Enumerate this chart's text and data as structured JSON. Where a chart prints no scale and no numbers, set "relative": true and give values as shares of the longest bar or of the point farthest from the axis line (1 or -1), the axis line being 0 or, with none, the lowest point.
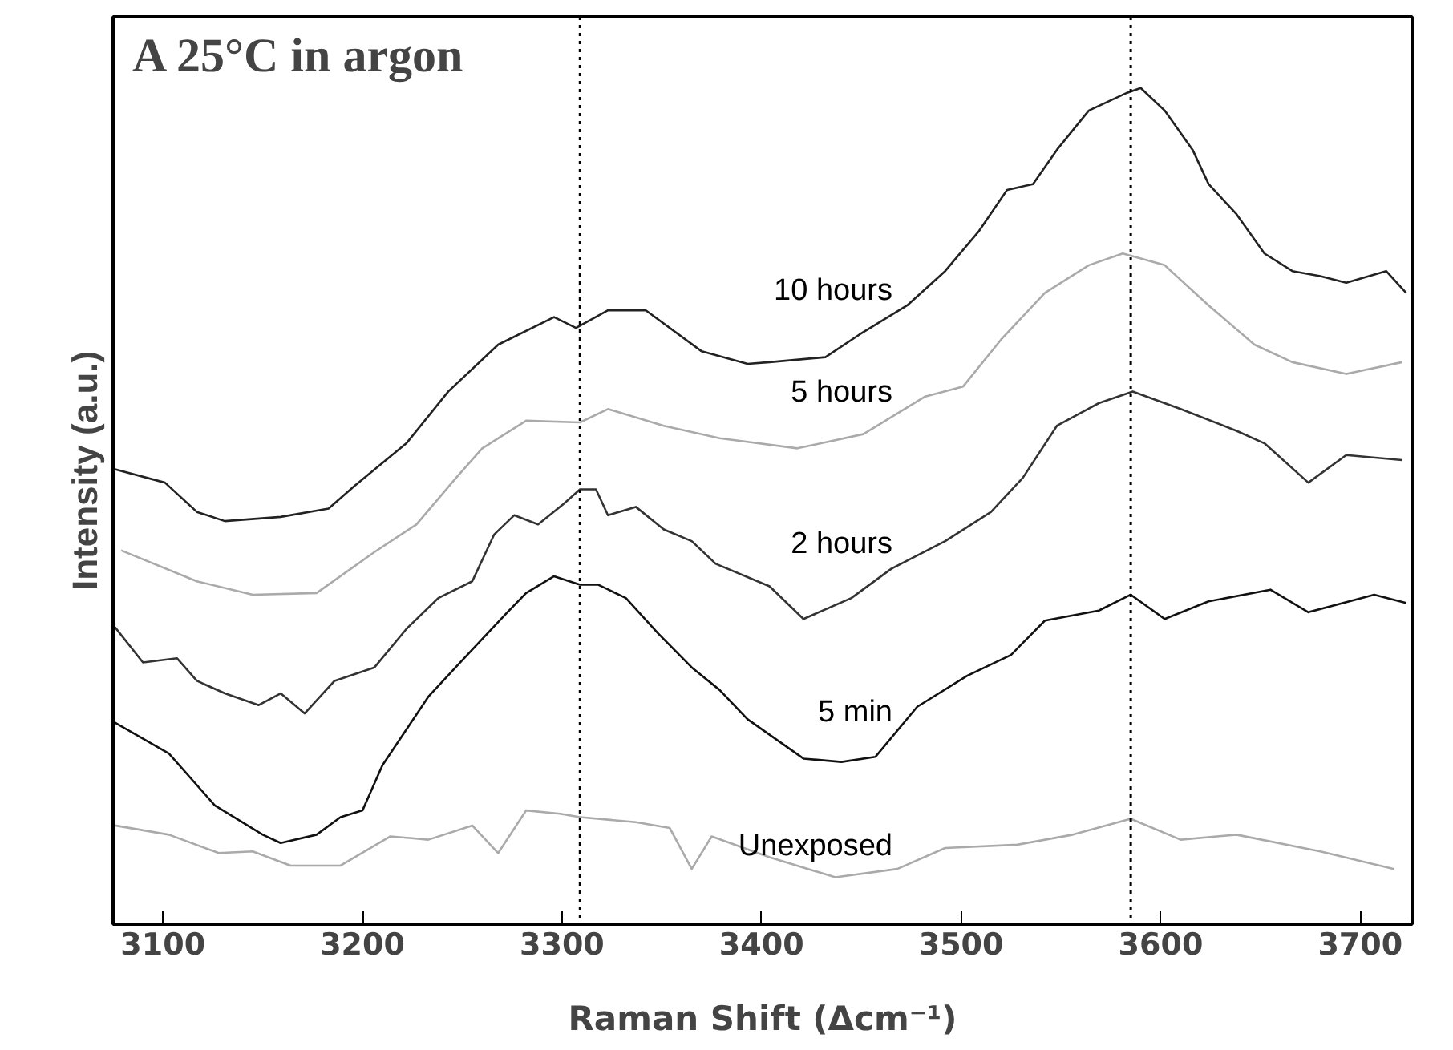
{
  "chart_data": {
    "type": "line",
    "title": "A 25°C in argon",
    "xlabel": "Raman Shift (Δcm⁻¹)",
    "ylabel": "Intensity (a.u.)",
    "relative": true,
    "xlim": [
      3075,
      3726
    ],
    "xticks": [
      3100,
      3200,
      3300,
      3400,
      3500,
      3600,
      3700
    ],
    "grid": false,
    "legend": false,
    "marker": "none",
    "line_style": "solid",
    "ref_lines": [
      {
        "axis": "x",
        "value": 3309,
        "label": null,
        "line_style": "dotted",
        "color": "#000000"
      },
      {
        "axis": "x",
        "value": 3585,
        "label": null,
        "line_style": "dotted",
        "color": "#000000"
      }
    ],
    "series": [
      {
        "name": "10 hours",
        "color": "#222222",
        "x": [
          3076,
          3101,
          3117,
          3131,
          3159,
          3183,
          3196,
          3222,
          3243,
          3268,
          3296,
          3307,
          3323,
          3342,
          3370,
          3393,
          3404,
          3432,
          3449,
          3473,
          3492,
          3509,
          3523,
          3536,
          3548,
          3564,
          3583,
          3590,
          3602,
          3616,
          3624,
          3638,
          3652,
          3666,
          3680,
          3693,
          3713,
          3723
        ],
        "values": [
          0.544,
          0.528,
          0.493,
          0.482,
          0.487,
          0.497,
          0.524,
          0.575,
          0.637,
          0.693,
          0.726,
          0.713,
          0.734,
          0.734,
          0.685,
          0.67,
          0.672,
          0.678,
          0.705,
          0.74,
          0.781,
          0.829,
          0.878,
          0.885,
          0.926,
          0.973,
          0.994,
          1.0,
          0.973,
          0.926,
          0.885,
          0.849,
          0.802,
          0.781,
          0.775,
          0.767,
          0.781,
          0.755
        ]
      },
      {
        "name": "5 hours",
        "color": "#aaaaaa",
        "x": [
          3079,
          3117,
          3145,
          3177,
          3206,
          3227,
          3247,
          3260,
          3282,
          3309,
          3323,
          3351,
          3379,
          3418,
          3451,
          3482,
          3501,
          3520,
          3542,
          3564,
          3581,
          3602,
          3624,
          3647,
          3666,
          3693,
          3721
        ],
        "values": [
          0.447,
          0.41,
          0.394,
          0.396,
          0.445,
          0.478,
          0.534,
          0.569,
          0.602,
          0.6,
          0.616,
          0.596,
          0.581,
          0.569,
          0.586,
          0.631,
          0.643,
          0.699,
          0.755,
          0.788,
          0.802,
          0.788,
          0.74,
          0.693,
          0.672,
          0.658,
          0.672
        ]
      },
      {
        "name": "2 hours",
        "color": "#333333",
        "x": [
          3076,
          3090,
          3107,
          3117,
          3131,
          3148,
          3159,
          3171,
          3186,
          3206,
          3222,
          3238,
          3255,
          3266,
          3276,
          3288,
          3301,
          3309,
          3317,
          3323,
          3337,
          3351,
          3365,
          3377,
          3404,
          3421,
          3445,
          3465,
          3492,
          3515,
          3531,
          3548,
          3569,
          3586,
          3610,
          3638,
          3652,
          3674,
          3693,
          3721
        ],
        "values": [
          0.355,
          0.313,
          0.318,
          0.291,
          0.276,
          0.262,
          0.276,
          0.252,
          0.291,
          0.307,
          0.353,
          0.39,
          0.41,
          0.466,
          0.489,
          0.478,
          0.503,
          0.52,
          0.52,
          0.489,
          0.499,
          0.472,
          0.458,
          0.431,
          0.404,
          0.365,
          0.39,
          0.425,
          0.458,
          0.493,
          0.534,
          0.596,
          0.623,
          0.637,
          0.616,
          0.59,
          0.575,
          0.528,
          0.561,
          0.555
        ]
      },
      {
        "name": "5 min",
        "color": "#111111",
        "x": [
          3076,
          3103,
          3126,
          3150,
          3159,
          3177,
          3189,
          3200,
          3210,
          3233,
          3249,
          3271,
          3282,
          3296,
          3309,
          3318,
          3332,
          3348,
          3365,
          3379,
          3393,
          3421,
          3440,
          3457,
          3478,
          3503,
          3525,
          3542,
          3569,
          3585,
          3602,
          3624,
          3655,
          3674,
          3707,
          3723
        ],
        "values": [
          0.241,
          0.204,
          0.142,
          0.107,
          0.097,
          0.107,
          0.128,
          0.136,
          0.19,
          0.272,
          0.313,
          0.369,
          0.396,
          0.416,
          0.406,
          0.406,
          0.39,
          0.348,
          0.307,
          0.28,
          0.245,
          0.198,
          0.194,
          0.2,
          0.26,
          0.297,
          0.322,
          0.363,
          0.375,
          0.394,
          0.365,
          0.386,
          0.4,
          0.373,
          0.394,
          0.384
        ]
      },
      {
        "name": "Unexposed",
        "color": "#aaaaaa",
        "x": [
          3076,
          3103,
          3128,
          3145,
          3164,
          3189,
          3214,
          3233,
          3255,
          3268,
          3282,
          3299,
          3309,
          3337,
          3354,
          3365,
          3375,
          3404,
          3437,
          3468,
          3492,
          3528,
          3556,
          3585,
          3610,
          3638,
          3680,
          3717
        ],
        "values": [
          0.118,
          0.107,
          0.085,
          0.087,
          0.07,
          0.07,
          0.105,
          0.101,
          0.118,
          0.085,
          0.136,
          0.132,
          0.128,
          0.122,
          0.115,
          0.066,
          0.105,
          0.08,
          0.056,
          0.066,
          0.091,
          0.095,
          0.107,
          0.126,
          0.101,
          0.107,
          0.087,
          0.066
        ]
      }
    ]
  }
}
